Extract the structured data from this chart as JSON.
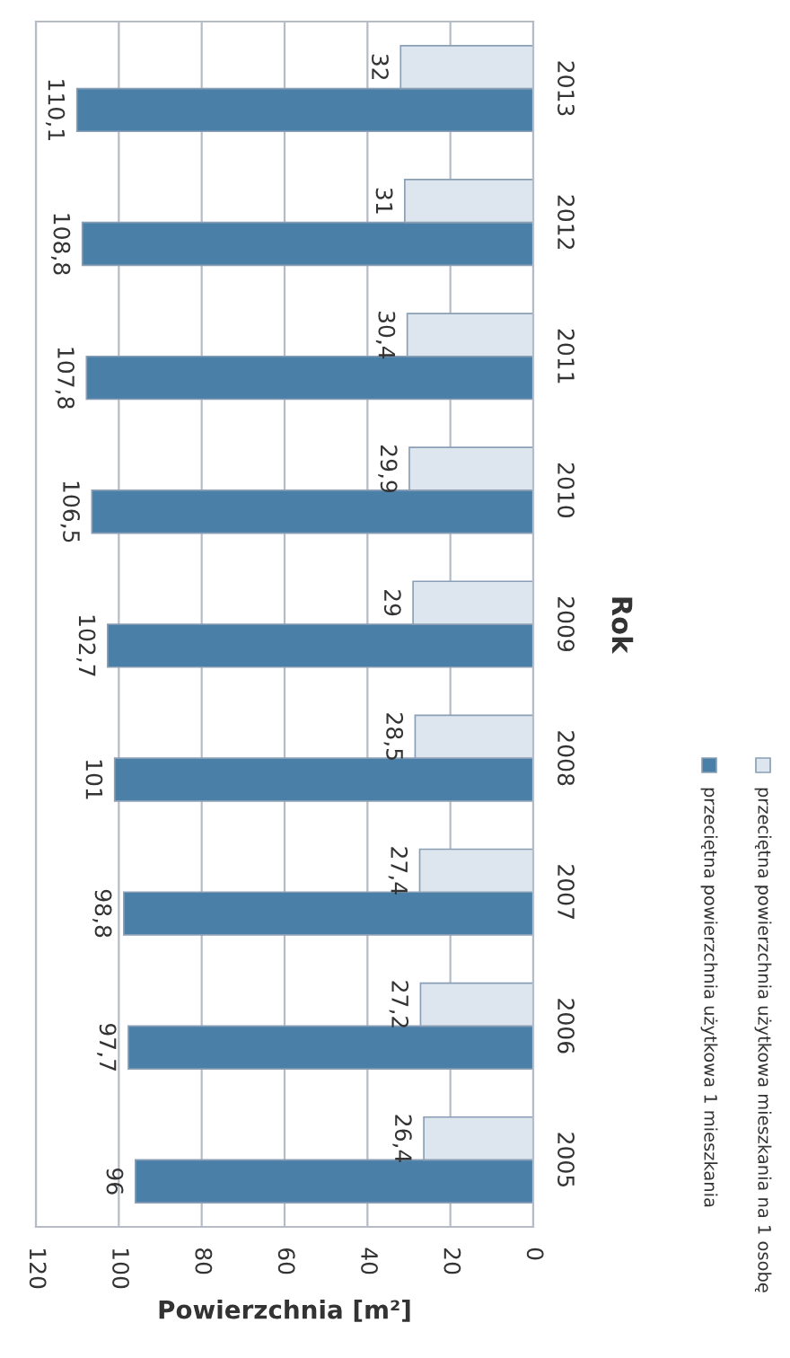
{
  "chart_data": {
    "type": "bar",
    "orientation": "horizontal",
    "xlabel": "Powierzchnia [m²]",
    "ylabel": "Rok",
    "categories": [
      "2013",
      "2012",
      "2011",
      "2010",
      "2009",
      "2008",
      "2007",
      "2006",
      "2005"
    ],
    "series": [
      {
        "name": "przeciętna powierzchnia użytkowa 1 mieszkania",
        "color": "#4a7fa8",
        "values": [
          110.1,
          108.8,
          107.8,
          106.5,
          102.7,
          101,
          98.8,
          97.7,
          96
        ],
        "value_labels": [
          "110,1",
          "108,8",
          "107,8",
          "106,5",
          "102,7",
          "101",
          "98,8",
          "97,7",
          "96"
        ]
      },
      {
        "name": "przeciętna powierzchnia użytkowa mieszkania na 1 osobę",
        "color": "#dde5ef",
        "values": [
          32,
          31,
          30.4,
          29.9,
          29,
          28.5,
          27.4,
          27.2,
          26.4
        ],
        "value_labels": [
          "32",
          "31",
          "30,4",
          "29,9",
          "29",
          "28,5",
          "27,4",
          "27,2",
          "26,4"
        ]
      }
    ],
    "xlim": [
      120,
      0
    ],
    "xticks": [
      0,
      20,
      40,
      60,
      80,
      100,
      120
    ],
    "grid": "x",
    "legend": "right"
  }
}
